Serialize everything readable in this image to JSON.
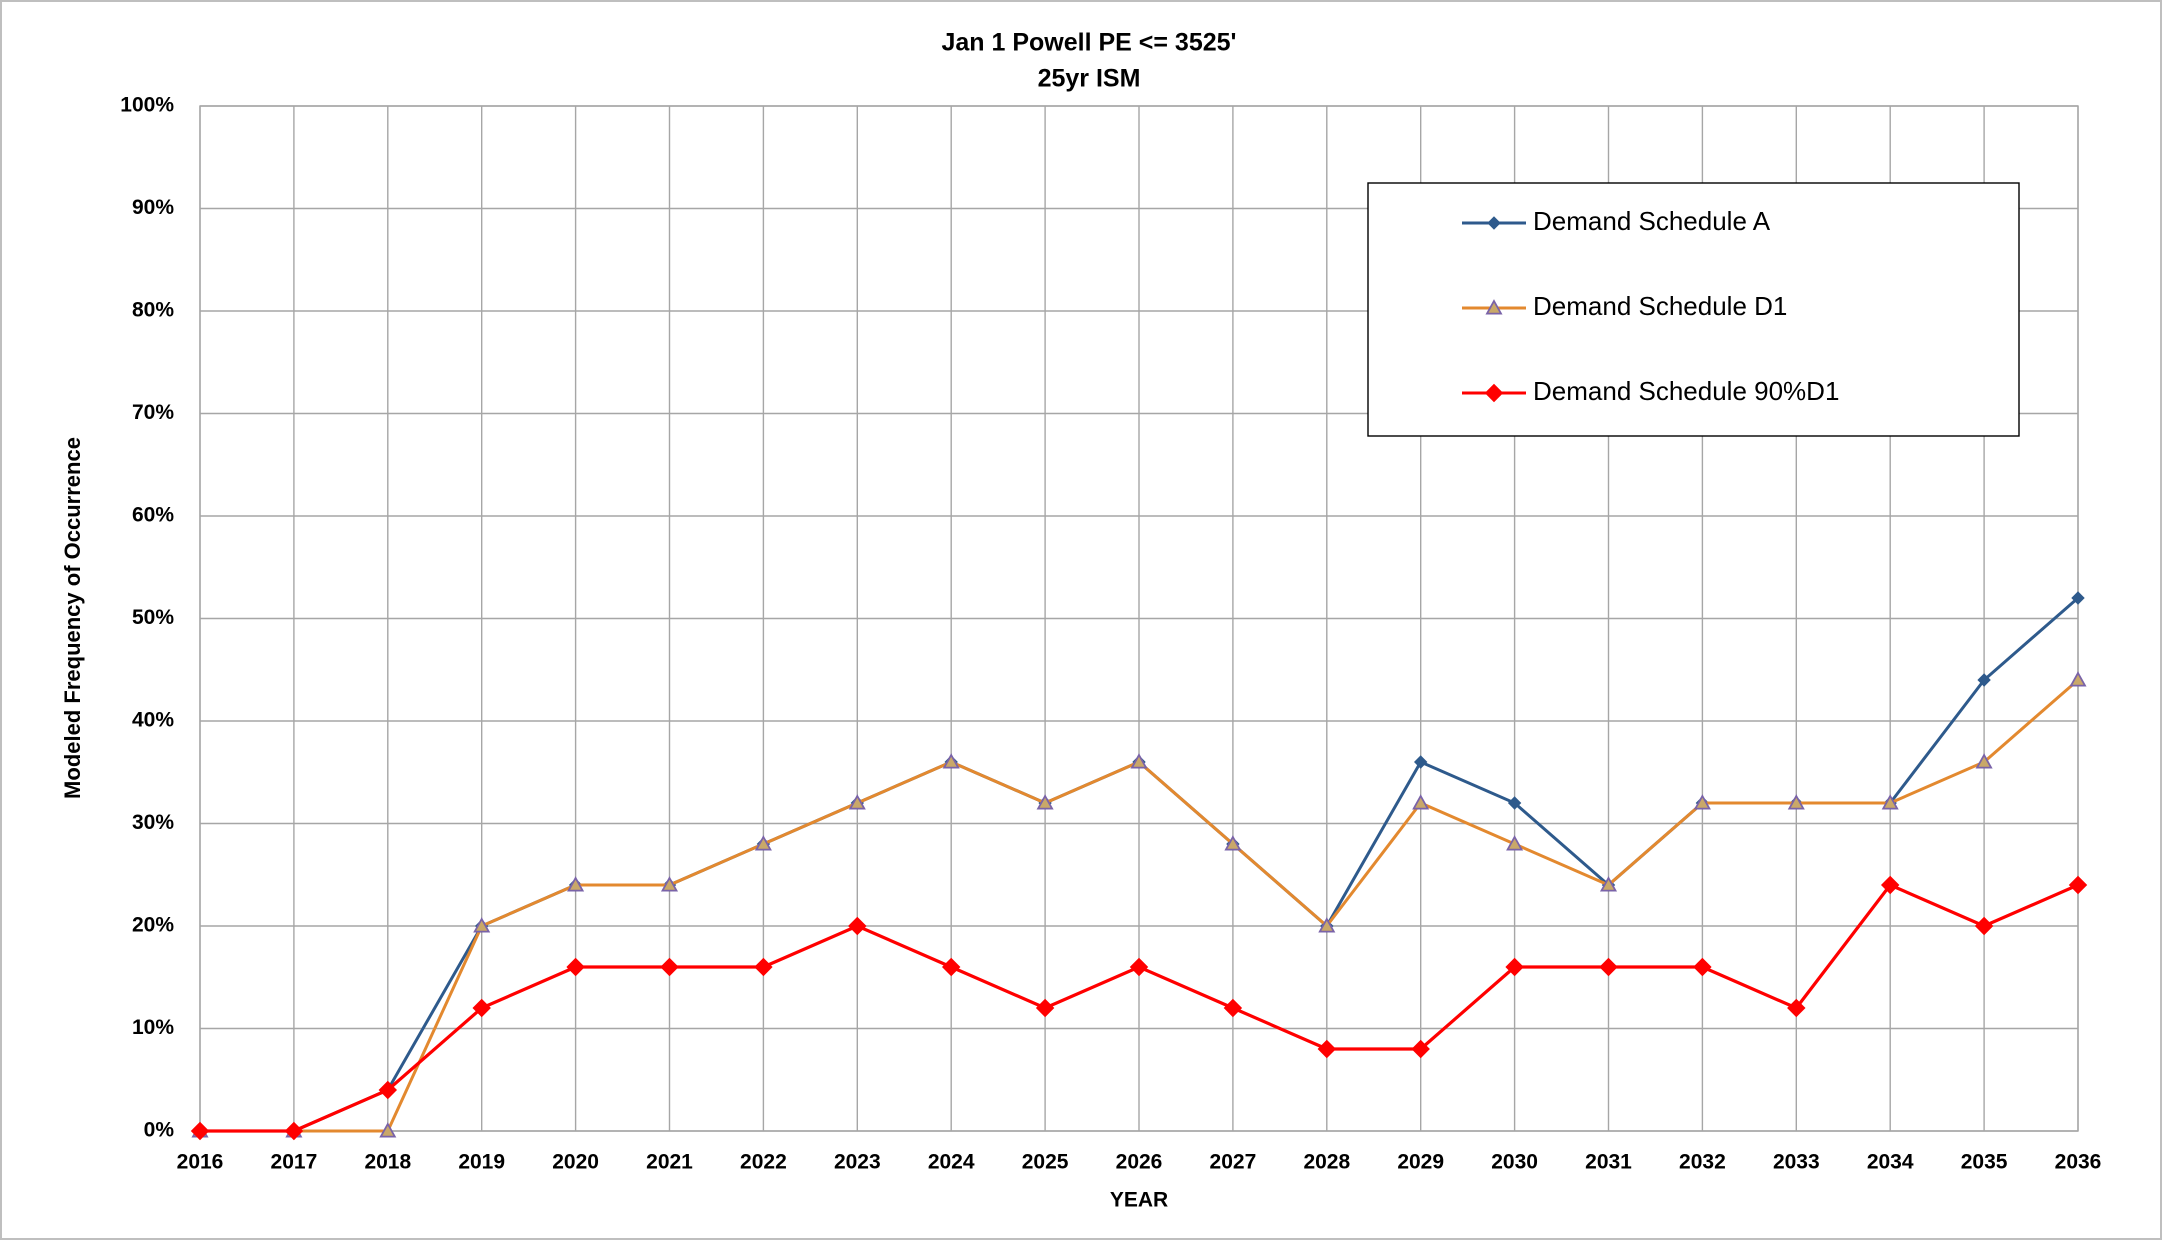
{
  "chart_data": {
    "type": "line",
    "title": "Jan 1 Powell PE <=  3525'",
    "subtitle": "25yr ISM",
    "x_label": "YEAR",
    "y_label": "Modeled Frequency of Occurrence",
    "categories": [
      "2016",
      "2017",
      "2018",
      "2019",
      "2020",
      "2021",
      "2022",
      "2023",
      "2024",
      "2025",
      "2026",
      "2027",
      "2028",
      "2029",
      "2030",
      "2031",
      "2032",
      "2033",
      "2034",
      "2035",
      "2036"
    ],
    "series": [
      {
        "name": "Demand Schedule A",
        "color": "#2e5a8c",
        "marker": "diamond",
        "values": [
          0,
          0,
          4,
          20,
          24,
          24,
          28,
          32,
          36,
          32,
          36,
          28,
          20,
          36,
          32,
          24,
          32,
          32,
          32,
          44,
          52
        ]
      },
      {
        "name": "Demand Schedule D1",
        "color": "#e3892f",
        "marker": "triangle",
        "values": [
          0,
          0,
          0,
          20,
          24,
          24,
          28,
          32,
          36,
          32,
          36,
          28,
          20,
          32,
          28,
          24,
          32,
          32,
          32,
          36,
          44
        ]
      },
      {
        "name": "Demand Schedule 90%D1",
        "color": "#ff0000",
        "marker": "diamond",
        "values": [
          0,
          0,
          4,
          12,
          16,
          16,
          16,
          20,
          16,
          12,
          16,
          12,
          8,
          8,
          16,
          16,
          16,
          12,
          24,
          20,
          24
        ]
      }
    ],
    "ylim": [
      0,
      100
    ],
    "yticks": [
      {
        "value": 0,
        "label": "0%"
      },
      {
        "value": 10,
        "label": "10%"
      },
      {
        "value": 20,
        "label": "20%"
      },
      {
        "value": 30,
        "label": "30%"
      },
      {
        "value": 40,
        "label": "40%"
      },
      {
        "value": 50,
        "label": "50%"
      },
      {
        "value": 60,
        "label": "60%"
      },
      {
        "value": 70,
        "label": "70%"
      },
      {
        "value": 80,
        "label": "80%"
      },
      {
        "value": 90,
        "label": "90%"
      },
      {
        "value": 100,
        "label": "100%"
      }
    ],
    "grid": true,
    "legend": "upper right"
  }
}
